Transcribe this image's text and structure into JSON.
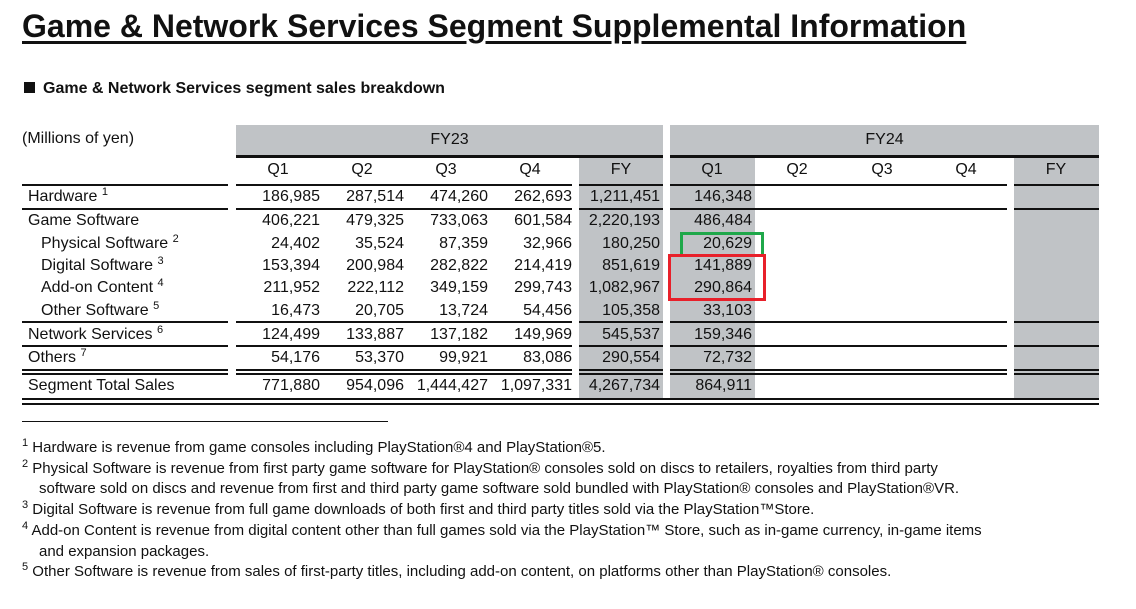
{
  "title": "Game & Network Services Segment Supplemental Information",
  "subtitle": "Game & Network Services segment sales breakdown",
  "unit_label": "(Millions of yen)",
  "fiscal_years": [
    "FY23",
    "FY24"
  ],
  "columns": [
    "Q1",
    "Q2",
    "Q3",
    "Q4",
    "FY",
    "Q1",
    "Q2",
    "Q3",
    "Q4",
    "FY"
  ],
  "rows": [
    {
      "label": "Hardware",
      "note": "1",
      "indent": false,
      "values": [
        "186,985",
        "287,514",
        "474,260",
        "262,693",
        "1,211,451",
        "146,348",
        "",
        "",
        "",
        ""
      ]
    },
    {
      "label": "Game Software",
      "note": "",
      "indent": false,
      "values": [
        "406,221",
        "479,325",
        "733,063",
        "601,584",
        "2,220,193",
        "486,484",
        "",
        "",
        "",
        ""
      ]
    },
    {
      "label": "Physical Software",
      "note": "2",
      "indent": true,
      "values": [
        "24,402",
        "35,524",
        "87,359",
        "32,966",
        "180,250",
        "20,629",
        "",
        "",
        "",
        ""
      ]
    },
    {
      "label": "Digital Software",
      "note": "3",
      "indent": true,
      "values": [
        "153,394",
        "200,984",
        "282,822",
        "214,419",
        "851,619",
        "141,889",
        "",
        "",
        "",
        ""
      ]
    },
    {
      "label": "Add-on Content",
      "note": "4",
      "indent": true,
      "values": [
        "211,952",
        "222,112",
        "349,159",
        "299,743",
        "1,082,967",
        "290,864",
        "",
        "",
        "",
        ""
      ]
    },
    {
      "label": "Other Software",
      "note": "5",
      "indent": true,
      "values": [
        "16,473",
        "20,705",
        "13,724",
        "54,456",
        "105,358",
        "33,103",
        "",
        "",
        "",
        ""
      ]
    },
    {
      "label": "Network Services",
      "note": "6",
      "indent": false,
      "values": [
        "124,499",
        "133,887",
        "137,182",
        "149,969",
        "545,537",
        "159,346",
        "",
        "",
        "",
        ""
      ]
    },
    {
      "label": "Others",
      "note": "7",
      "indent": false,
      "values": [
        "54,176",
        "53,370",
        "99,921",
        "83,086",
        "290,554",
        "72,732",
        "",
        "",
        "",
        ""
      ]
    },
    {
      "label": "Segment Total Sales",
      "note": "",
      "indent": false,
      "values": [
        "771,880",
        "954,096",
        "1,444,427",
        "1,097,331",
        "4,267,734",
        "864,911",
        "",
        "",
        "",
        ""
      ]
    }
  ],
  "highlights": {
    "green": "#1fa84a",
    "red": "#e8202a"
  },
  "colors": {
    "header_gray": "#c0c3c6"
  },
  "footnotes": [
    {
      "num": "1",
      "lines": [
        "Hardware is revenue from game consoles including PlayStation®4 and PlayStation®5."
      ]
    },
    {
      "num": "2",
      "lines": [
        "Physical Software is revenue from first party game software for PlayStation® consoles sold on discs to retailers, royalties from third party",
        "software sold on discs and revenue from first and third party game software sold bundled with PlayStation® consoles and PlayStation®VR."
      ]
    },
    {
      "num": "3",
      "lines": [
        "Digital Software is revenue from full game downloads of both first and third party titles sold via the PlayStation™Store."
      ]
    },
    {
      "num": "4",
      "lines": [
        "Add-on Content is revenue from digital content other than full games sold via the PlayStation™ Store, such as in-game currency, in-game items",
        "and expansion packages."
      ]
    },
    {
      "num": "5",
      "lines": [
        "Other Software is revenue from sales of first-party titles, including add-on content, on platforms other than PlayStation® consoles."
      ]
    }
  ]
}
